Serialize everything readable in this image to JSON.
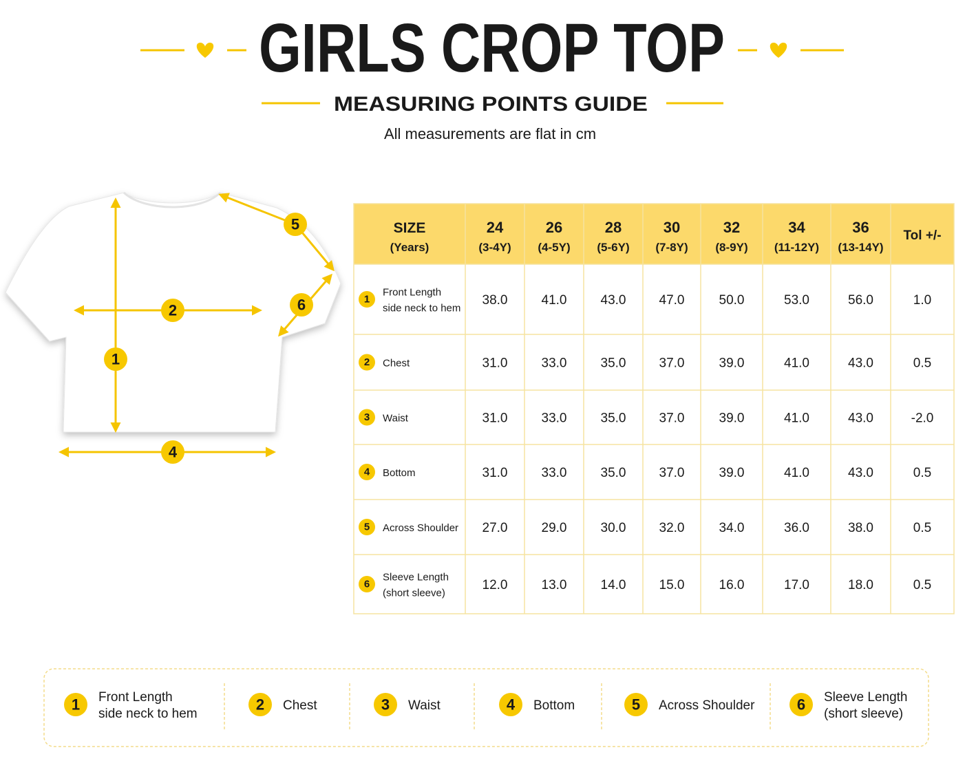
{
  "header": {
    "title": "GIRLS CROP TOP",
    "subtitle": "MEASURING POINTS GUIDE",
    "note": "All measurements are flat in cm"
  },
  "table": {
    "size_label": [
      "SIZE",
      "(Years)"
    ],
    "columns": [
      {
        "size": "24",
        "age": "(3-4Y)"
      },
      {
        "size": "26",
        "age": "(4-5Y)"
      },
      {
        "size": "28",
        "age": "(5-6Y)"
      },
      {
        "size": "30",
        "age": "(7-8Y)"
      },
      {
        "size": "32",
        "age": "(8-9Y)"
      },
      {
        "size": "34",
        "age": "(11-12Y)"
      },
      {
        "size": "36",
        "age": "(13-14Y)"
      }
    ],
    "tolerance_label": "Tol +/-",
    "rows": [
      {
        "number": "1",
        "name": [
          "Front Length",
          "side neck to hem"
        ],
        "values": [
          "38.0",
          "41.0",
          "43.0",
          "47.0",
          "50.0",
          "53.0",
          "56.0"
        ],
        "tolerance": "1.0"
      },
      {
        "number": "2",
        "name": [
          "Chest"
        ],
        "values": [
          "31.0",
          "33.0",
          "35.0",
          "37.0",
          "39.0",
          "41.0",
          "43.0"
        ],
        "tolerance": "0.5"
      },
      {
        "number": "3",
        "name": [
          "Waist"
        ],
        "values": [
          "31.0",
          "33.0",
          "35.0",
          "37.0",
          "39.0",
          "41.0",
          "43.0"
        ],
        "tolerance": "-2.0"
      },
      {
        "number": "4",
        "name": [
          "Bottom"
        ],
        "values": [
          "31.0",
          "33.0",
          "35.0",
          "37.0",
          "39.0",
          "41.0",
          "43.0"
        ],
        "tolerance": "0.5"
      },
      {
        "number": "5",
        "name": [
          "Across Shoulder"
        ],
        "values": [
          "27.0",
          "29.0",
          "30.0",
          "32.0",
          "34.0",
          "36.0",
          "38.0"
        ],
        "tolerance": "0.5"
      },
      {
        "number": "6",
        "name": [
          "Sleeve Length",
          "(short sleeve)"
        ],
        "values": [
          "12.0",
          "13.0",
          "14.0",
          "15.0",
          "16.0",
          "17.0",
          "18.0"
        ],
        "tolerance": "0.5"
      }
    ]
  }
}
